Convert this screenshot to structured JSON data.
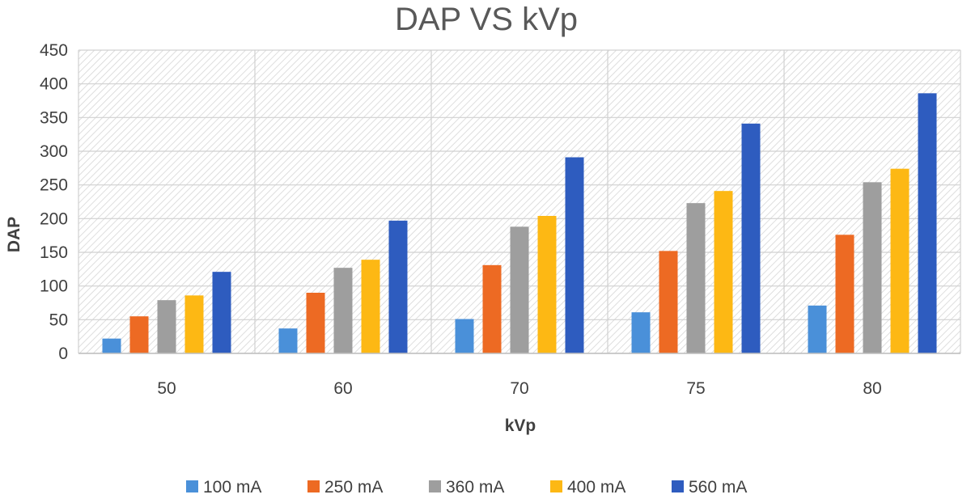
{
  "chart_data": {
    "type": "bar",
    "title": "DAP VS kVp",
    "xlabel": "kVp",
    "ylabel": "DAP",
    "ylim": [
      0,
      450
    ],
    "yticks": [
      0,
      50,
      100,
      150,
      200,
      250,
      300,
      350,
      400,
      450
    ],
    "ytick_labels": [
      "0",
      "50",
      "100",
      "150",
      "200",
      "250",
      "300",
      "350",
      "400",
      "450"
    ],
    "grid": true,
    "legend_position": "bottom",
    "categories": [
      "50",
      "60",
      "70",
      "75",
      "80"
    ],
    "series": [
      {
        "name": "100 mA",
        "color": "#4a90d9",
        "values": [
          22,
          37,
          51,
          61,
          71
        ]
      },
      {
        "name": "250 mA",
        "color": "#ed6a23",
        "values": [
          55,
          90,
          131,
          152,
          176
        ]
      },
      {
        "name": "360 mA",
        "color": "#9e9e9e",
        "values": [
          79,
          127,
          188,
          223,
          254
        ]
      },
      {
        "name": "400 mA",
        "color": "#fdb814",
        "values": [
          86,
          139,
          204,
          241,
          274
        ]
      },
      {
        "name": "560 mA",
        "color": "#2e5cbf",
        "values": [
          121,
          197,
          291,
          341,
          386
        ]
      }
    ]
  }
}
